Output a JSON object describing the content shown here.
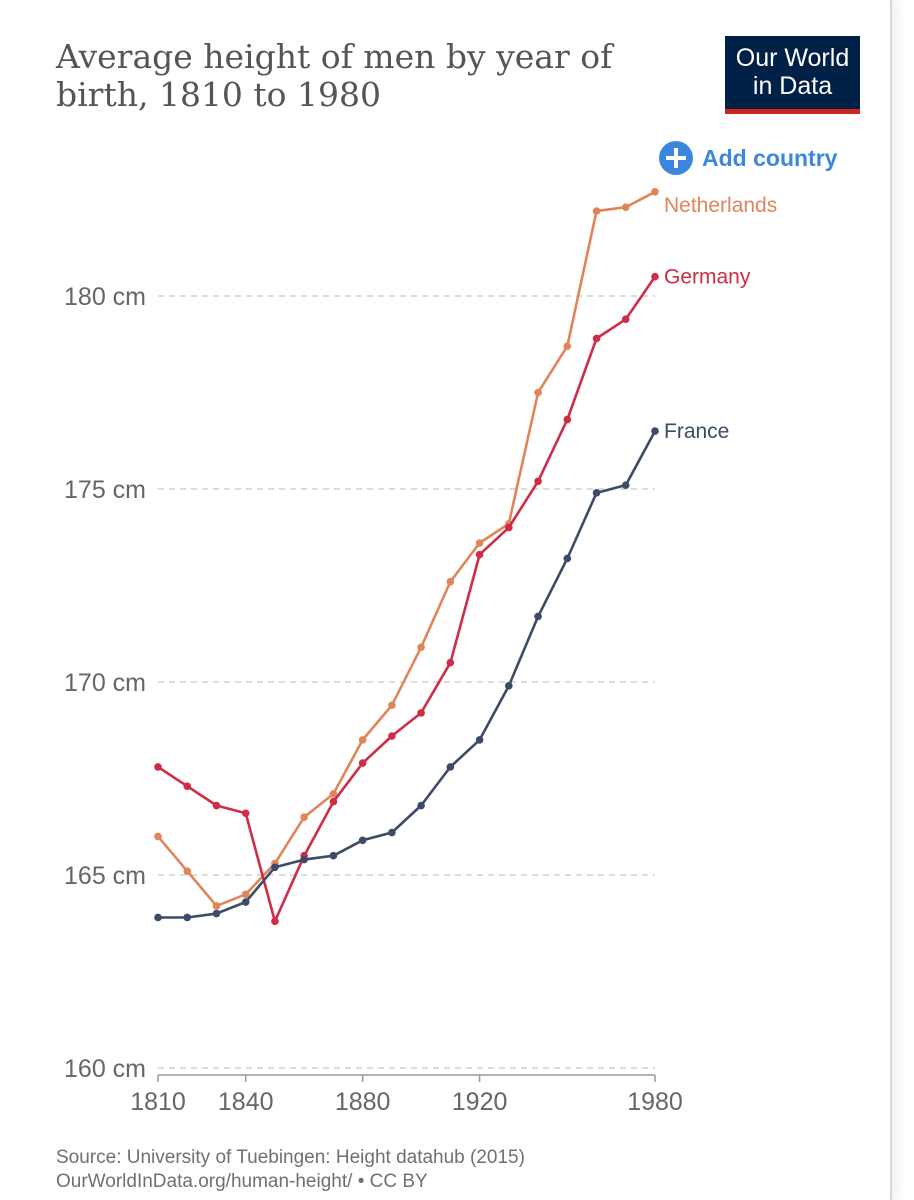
{
  "title": "Average height of men by year of birth, 1810 to 1980",
  "logo": {
    "line1": "Our World",
    "line2": "in Data",
    "bg_color": "#002147",
    "accent_color": "#ce261e"
  },
  "add_country": {
    "label": "Add country",
    "icon": "plus-circle-icon",
    "color": "#3d86e0"
  },
  "chart_data": {
    "type": "line",
    "title": "Average height of men by year of birth, 1810 to 1980",
    "xlabel": "",
    "ylabel": "",
    "x": [
      1810,
      1820,
      1830,
      1840,
      1850,
      1860,
      1870,
      1880,
      1890,
      1900,
      1910,
      1920,
      1930,
      1940,
      1950,
      1960,
      1970,
      1980
    ],
    "xlim": [
      1810,
      1980
    ],
    "ylim": [
      160,
      183
    ],
    "x_ticks": [
      1810,
      1840,
      1880,
      1920,
      1980
    ],
    "x_tick_labels": [
      "1810",
      "1840",
      "1880",
      "1920",
      "1980"
    ],
    "y_ticks": [
      160,
      165,
      170,
      175,
      180
    ],
    "y_tick_labels": [
      "160 cm",
      "165 cm",
      "170 cm",
      "175 cm",
      "180 cm"
    ],
    "grid": "horizontal-dashed",
    "series": [
      {
        "name": "Netherlands",
        "color": "#e0855a",
        "values": [
          166.0,
          165.1,
          164.2,
          164.5,
          165.3,
          166.5,
          167.1,
          168.5,
          169.4,
          170.9,
          172.6,
          173.6,
          174.1,
          177.5,
          178.7,
          182.2,
          182.3,
          182.7
        ]
      },
      {
        "name": "Germany",
        "color": "#ce2c47",
        "values": [
          167.8,
          167.3,
          166.8,
          166.6,
          163.8,
          165.5,
          166.9,
          167.9,
          168.6,
          169.2,
          170.5,
          173.3,
          174.0,
          175.2,
          176.8,
          178.9,
          179.4,
          180.5
        ]
      },
      {
        "name": "France",
        "color": "#3c4b66",
        "values": [
          163.9,
          163.9,
          164.0,
          164.3,
          165.2,
          165.4,
          165.5,
          165.9,
          166.1,
          166.8,
          167.8,
          168.5,
          169.9,
          171.7,
          173.2,
          174.9,
          175.1,
          176.5
        ]
      }
    ]
  },
  "source": {
    "line1": "Source: University of Tuebingen: Height datahub (2015)",
    "line2": "OurWorldInData.org/human-height/ • CC BY"
  }
}
